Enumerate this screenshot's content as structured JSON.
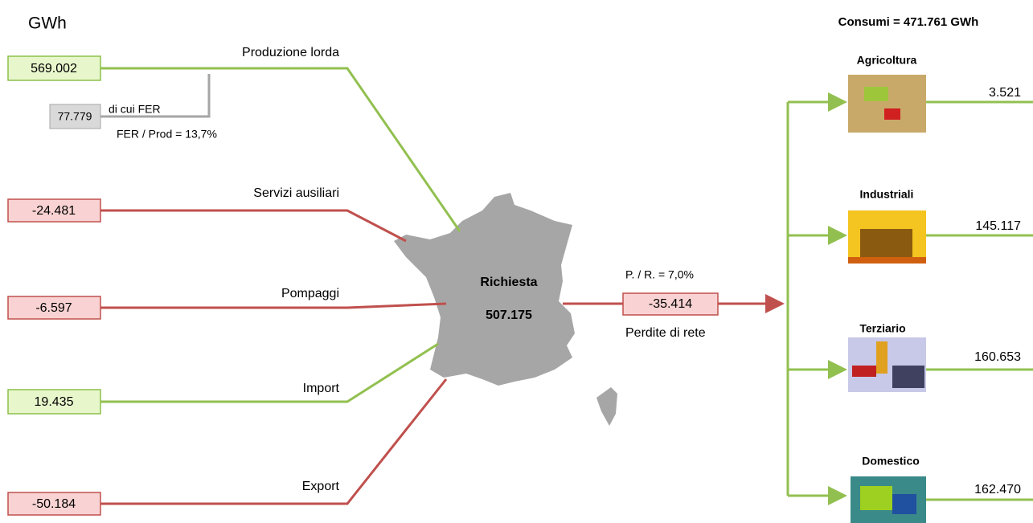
{
  "unit": "GWh",
  "consumi": "Consumi = 471.761 GWh",
  "inputs": [
    {
      "label": "Produzione lorda",
      "value": "569.002"
    },
    {
      "label": "Servizi ausiliari",
      "value": "-24.481"
    },
    {
      "label": "Pompaggi",
      "value": "-6.597"
    },
    {
      "label": "Import",
      "value": "19.435"
    },
    {
      "label": "Export",
      "value": "-50.184"
    }
  ],
  "fer": {
    "value": "77.779",
    "label": "di cui FER",
    "ratio": "FER / Prod = 13,7%"
  },
  "center": {
    "label": "Richiesta",
    "value": "507.175"
  },
  "losses": {
    "ratio": "P. / R. = 7,0%",
    "value": "-35.414",
    "label": "Perdite di rete"
  },
  "sectors": [
    {
      "label": "Agricoltura",
      "value": "3.521"
    },
    {
      "label": "Industriali",
      "value": "145.117"
    },
    {
      "label": "Terziario",
      "value": "160.653"
    },
    {
      "label": "Domestico",
      "value": "162.470"
    }
  ]
}
